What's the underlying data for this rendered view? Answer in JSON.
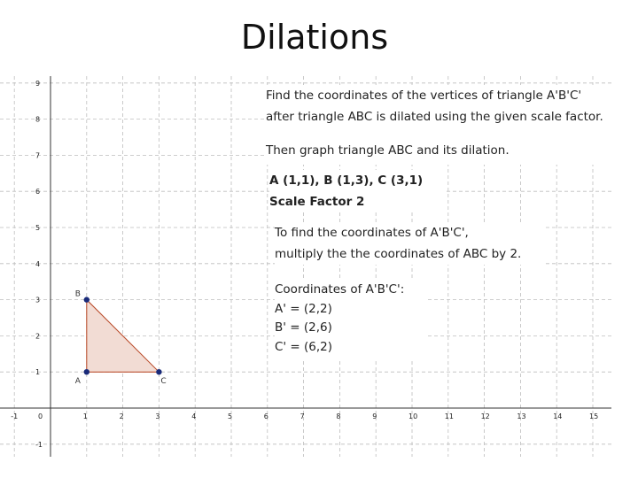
{
  "title": "Dilations",
  "instructions": {
    "line1": "Find the coordinates of the vertices of triangle A'B'C'",
    "line2": "after triangle ABC is dilated using the given scale factor.",
    "line3": "Then graph triangle ABC and its dilation."
  },
  "given": {
    "vertices": "A (1,1), B (1,3), C (3,1)",
    "scale_factor": "Scale Factor 2"
  },
  "method": {
    "line1": "To find the coordinates of A'B'C',",
    "line2": "multiply the the coordinates of ABC by 2."
  },
  "answer": {
    "heading": "Coordinates of A'B'C':",
    "a": "A' = (2,2)",
    "b": "B' = (2,6)",
    "c": "C' = (6,2)"
  },
  "graph": {
    "x_range": [
      -1,
      15
    ],
    "y_range": [
      -1,
      9
    ],
    "triangle": [
      {
        "label": "A",
        "x": 1,
        "y": 1
      },
      {
        "label": "B",
        "x": 1,
        "y": 3
      },
      {
        "label": "C",
        "x": 3,
        "y": 1
      }
    ],
    "colors": {
      "triangle_fill": "#f2dcd4",
      "triangle_edge": "#b5401d",
      "point": "#1a2b7a",
      "grid": "#bdbdbd"
    }
  }
}
